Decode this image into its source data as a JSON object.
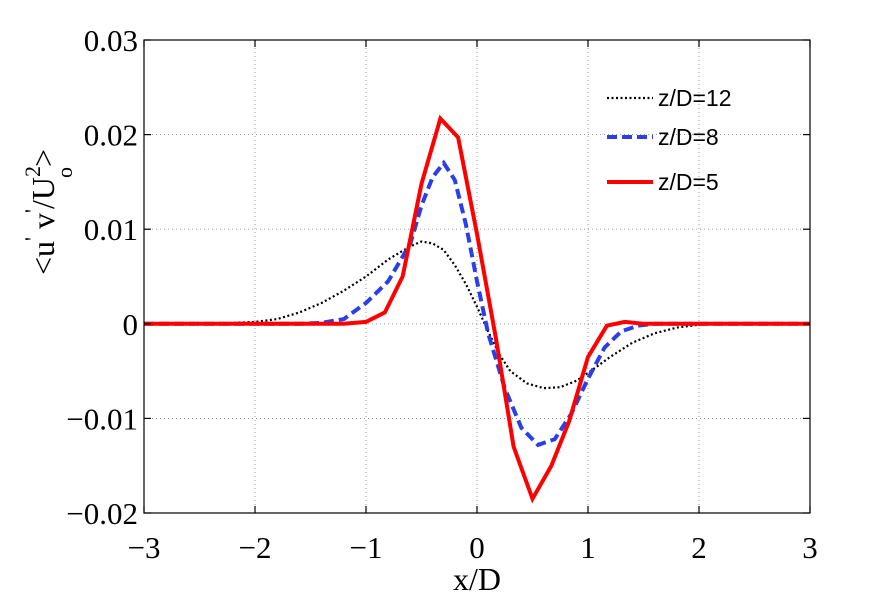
{
  "chart_data": {
    "type": "line",
    "title": "",
    "xlabel": "x/D",
    "ylabel_parts": {
      "open": "<u",
      "prime1": "'",
      "v": "v",
      "prime2": "'",
      "slash": "/U",
      "superscript": "2",
      "subscript": "o",
      "close": ">"
    },
    "xlim": [
      -3,
      3
    ],
    "ylim": [
      -0.02,
      0.03
    ],
    "x_ticks": [
      -3,
      -2,
      -1,
      0,
      1,
      2,
      3
    ],
    "x_tick_labels": [
      "−3",
      "−2",
      "−1",
      "0",
      "1",
      "2",
      "3"
    ],
    "y_ticks": [
      -0.02,
      -0.01,
      0,
      0.01,
      0.02,
      0.03
    ],
    "y_tick_labels": [
      "−0.02",
      "−0.01",
      "0",
      "0.01",
      "0.02",
      "0.03"
    ],
    "grid": true,
    "legend_position": "top-right",
    "series": [
      {
        "name": "z/D=12",
        "color": "#000000",
        "style": "dotted",
        "points": [
          [
            -3,
            0
          ],
          [
            -2.4,
            0
          ],
          [
            -2.0,
            0.0002
          ],
          [
            -1.8,
            0.0005
          ],
          [
            -1.6,
            0.0012
          ],
          [
            -1.4,
            0.0022
          ],
          [
            -1.2,
            0.0035
          ],
          [
            -1.0,
            0.005
          ],
          [
            -0.8,
            0.0068
          ],
          [
            -0.6,
            0.0082
          ],
          [
            -0.5,
            0.0087
          ],
          [
            -0.4,
            0.0085
          ],
          [
            -0.3,
            0.0078
          ],
          [
            -0.2,
            0.0062
          ],
          [
            -0.1,
            0.0042
          ],
          [
            0.0,
            0.0018
          ],
          [
            0.1,
            -0.0008
          ],
          [
            0.2,
            -0.0032
          ],
          [
            0.3,
            -0.005
          ],
          [
            0.45,
            -0.0063
          ],
          [
            0.6,
            -0.0068
          ],
          [
            0.75,
            -0.0067
          ],
          [
            0.9,
            -0.006
          ],
          [
            1.0,
            -0.0052
          ],
          [
            1.2,
            -0.0035
          ],
          [
            1.4,
            -0.002
          ],
          [
            1.6,
            -0.001
          ],
          [
            1.8,
            -0.0004
          ],
          [
            2.0,
            -0.0001
          ],
          [
            2.2,
            0
          ],
          [
            3,
            0
          ]
        ]
      },
      {
        "name": "z/D=8",
        "color": "#2a3fe8",
        "style": "dashed",
        "points": [
          [
            -3,
            0
          ],
          [
            -1.6,
            0
          ],
          [
            -1.4,
            0.0001
          ],
          [
            -1.2,
            0.0005
          ],
          [
            -1.0,
            0.0022
          ],
          [
            -0.8,
            0.0045
          ],
          [
            -0.6,
            0.0085
          ],
          [
            -0.5,
            0.0125
          ],
          [
            -0.4,
            0.0155
          ],
          [
            -0.3,
            0.017
          ],
          [
            -0.2,
            0.0152
          ],
          [
            -0.1,
            0.0105
          ],
          [
            0.0,
            0.0045
          ],
          [
            0.1,
            -0.001
          ],
          [
            0.25,
            -0.0068
          ],
          [
            0.4,
            -0.011
          ],
          [
            0.55,
            -0.0128
          ],
          [
            0.7,
            -0.0122
          ],
          [
            0.85,
            -0.0095
          ],
          [
            1.0,
            -0.0058
          ],
          [
            1.15,
            -0.0025
          ],
          [
            1.3,
            -0.0008
          ],
          [
            1.45,
            -0.0002
          ],
          [
            1.6,
            0
          ],
          [
            3,
            0
          ]
        ]
      },
      {
        "name": "z/D=5",
        "color": "#ff0000",
        "style": "solid",
        "points": [
          [
            -3,
            0
          ],
          [
            -1.2,
            0
          ],
          [
            -1.0,
            0.0002
          ],
          [
            -0.83,
            0.0012
          ],
          [
            -0.67,
            0.005
          ],
          [
            -0.5,
            0.0148
          ],
          [
            -0.33,
            0.0217
          ],
          [
            -0.17,
            0.0197
          ],
          [
            0.0,
            0.0095
          ],
          [
            0.17,
            -0.0015
          ],
          [
            0.33,
            -0.013
          ],
          [
            0.5,
            -0.0185
          ],
          [
            0.67,
            -0.015
          ],
          [
            0.83,
            -0.0103
          ],
          [
            1.0,
            -0.0035
          ],
          [
            1.17,
            -0.0002
          ],
          [
            1.33,
            0.0002
          ],
          [
            1.5,
            0
          ],
          [
            3,
            0
          ]
        ]
      }
    ]
  }
}
